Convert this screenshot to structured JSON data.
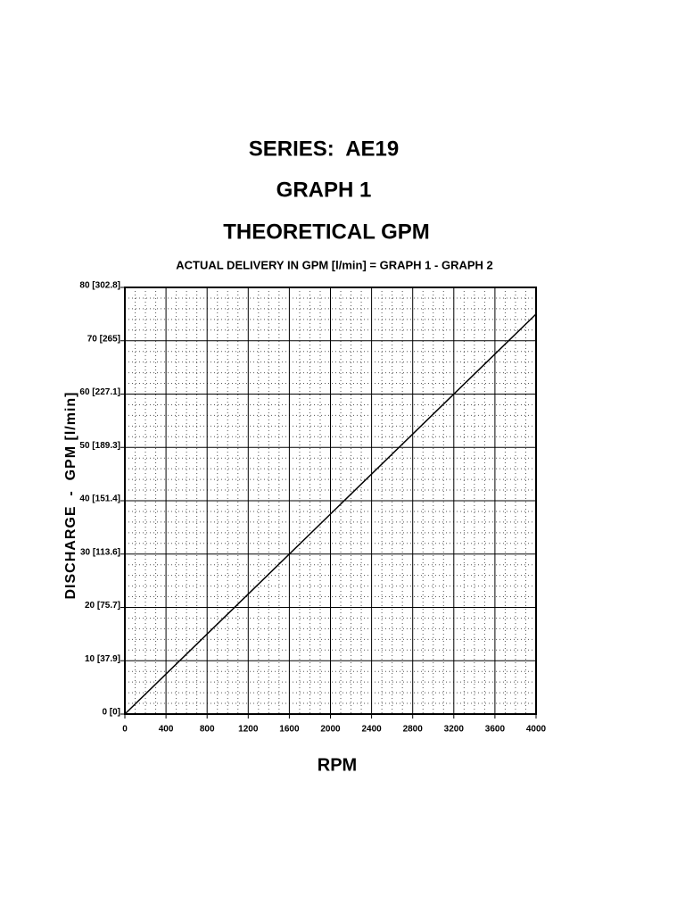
{
  "chart_data": {
    "type": "line",
    "title": "SERIES:  AE19",
    "subtitles": [
      "GRAPH 1",
      "THEORETICAL GPM"
    ],
    "note": "ACTUAL DELIVERY IN GPM [l/min] = GRAPH 1 - GRAPH 2",
    "xlabel": "RPM",
    "ylabel": "DISCHARGE  -  GPM [l/min]",
    "x": [
      0,
      4000
    ],
    "series": [
      {
        "color": "#000000",
        "values": [
          0,
          75
        ]
      }
    ],
    "xlim": [
      0,
      4000
    ],
    "xticks": [
      0,
      400,
      800,
      1200,
      1600,
      2000,
      2400,
      2800,
      3200,
      3600,
      4000
    ],
    "ylim": [
      0,
      80
    ],
    "yticks": [
      {
        "value": 0,
        "label": "0 [0]"
      },
      {
        "value": 10,
        "label": "10 [37.9]"
      },
      {
        "value": 20,
        "label": "20 [75.7]"
      },
      {
        "value": 30,
        "label": "30 [113.6]"
      },
      {
        "value": 40,
        "label": "40 [151.4]"
      },
      {
        "value": 50,
        "label": "50 [189.3]"
      },
      {
        "value": 60,
        "label": "60 [227.1]"
      },
      {
        "value": 70,
        "label": "70 [265]"
      },
      {
        "value": 80,
        "label": "80 [302.8]"
      }
    ],
    "grid": true
  }
}
